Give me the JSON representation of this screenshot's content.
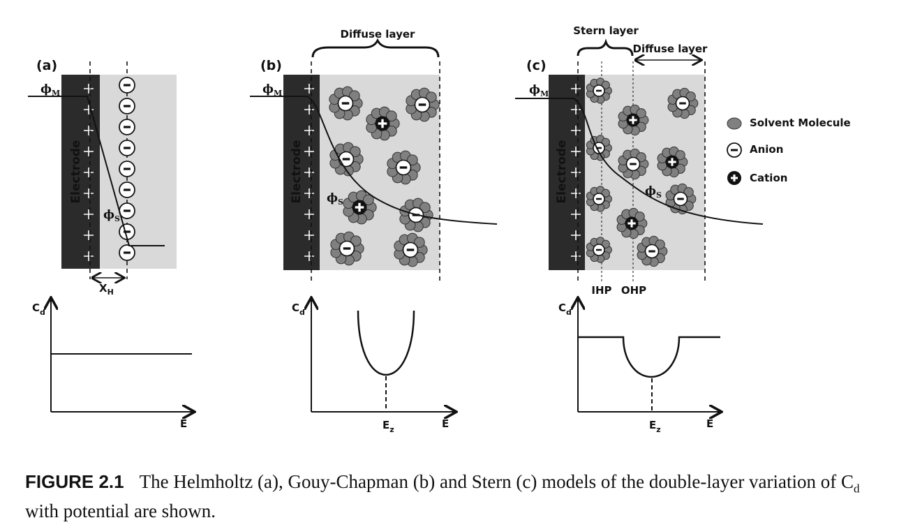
{
  "panels": {
    "a": {
      "tag": "(a)",
      "electrode": "Electrode",
      "phi_m": "ϕ",
      "phi_m_sub": "M",
      "phi_s": "ϕ",
      "phi_s_sub": "S",
      "xh": "X",
      "xh_sub": "H"
    },
    "b": {
      "tag": "(b)",
      "electrode": "Electrode",
      "phi_m": "ϕ",
      "phi_m_sub": "M",
      "phi_s": "ϕ",
      "phi_s_sub": "S",
      "region": "Diffuse layer"
    },
    "c": {
      "tag": "(c)",
      "electrode": "Electrode",
      "phi_m": "ϕ",
      "phi_m_sub": "M",
      "phi_s": "ϕ",
      "phi_s_sub": "S",
      "stern": "Stern layer",
      "diffuse": "Diffuse layer",
      "ihp": "IHP",
      "ohp": "OHP"
    }
  },
  "legend": {
    "solvent": "Solvent Molecule",
    "anion": "Anion",
    "cation": "Cation"
  },
  "graphs": {
    "y_label": "C",
    "y_sub": "d",
    "x_label": "E",
    "ez": "E",
    "ez_sub": "z"
  },
  "caption": {
    "label": "FIGURE 2.1",
    "text_1": "The Helmholtz (a), Gouy-Chapman (b) and Stern (c) models of the double-layer variation of C",
    "sub": "d",
    "text_2": " with potential are shown."
  },
  "colors": {
    "electrode": "#2b2b2b",
    "solution": "#d9d9d9",
    "solvent": "#808080"
  }
}
